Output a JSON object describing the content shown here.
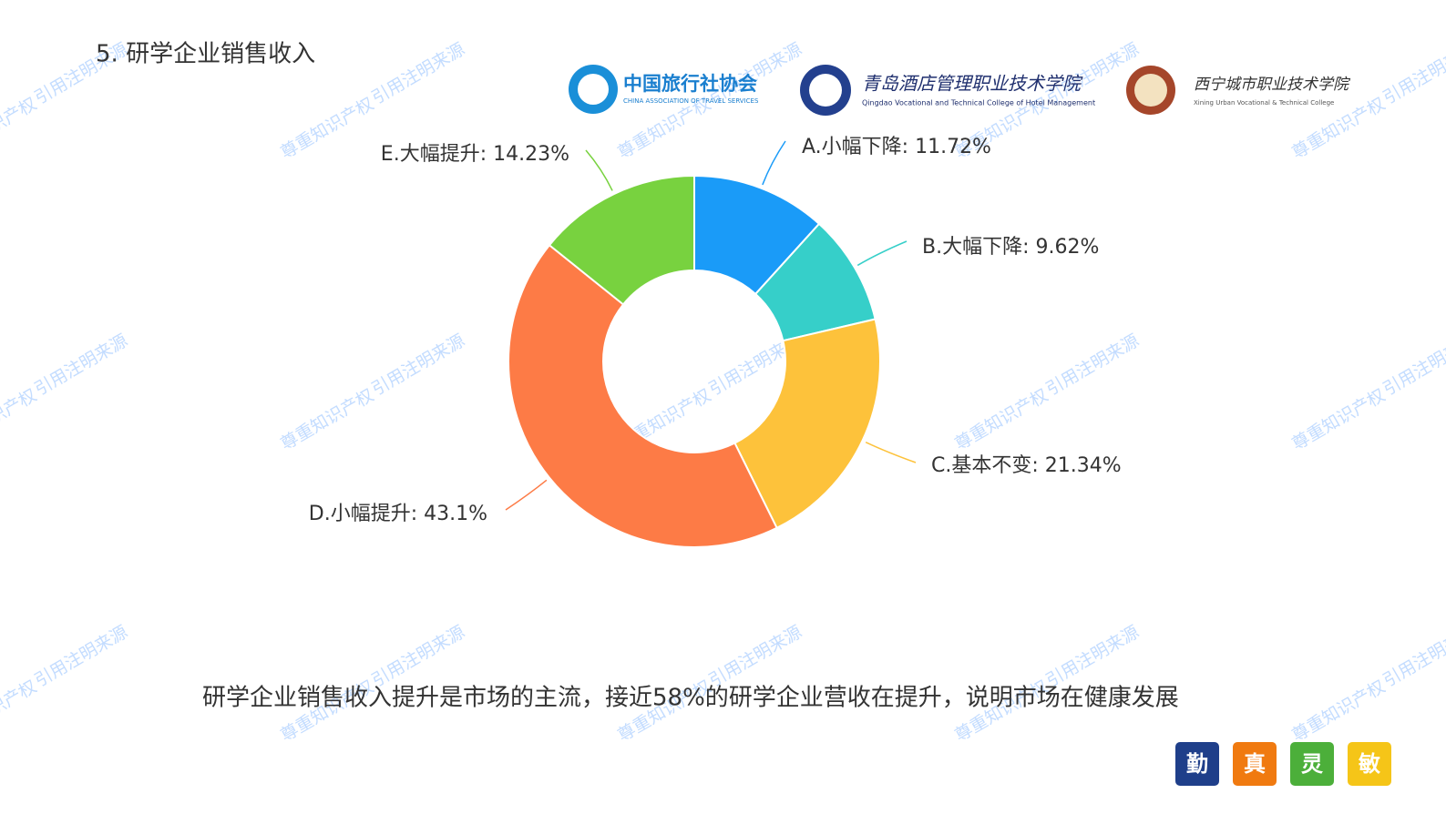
{
  "chart_data": {
    "type": "donut",
    "title": "5. 研学企业销售收入",
    "categories": [
      "A.小幅下降",
      "B.大幅下降",
      "C.基本不变",
      "D.小幅提升",
      "E.大幅提升"
    ],
    "label_separator": ": ",
    "values": [
      11.72,
      9.62,
      21.34,
      43.1,
      14.23
    ],
    "value_labels": [
      "11.72%",
      "9.62%",
      "21.34%",
      "43.1%",
      "14.23%"
    ],
    "colors": [
      "#1a9bf8",
      "#36cfc9",
      "#fdc23b",
      "#fd7b46",
      "#78d23f"
    ]
  },
  "logos": [
    {
      "name": "中国旅行社协会",
      "subtitle": "CHINA ASSOCIATION OF TRAVEL SERVICES"
    },
    {
      "name": "青岛酒店管理职业技术学院",
      "subtitle": "Qingdao Vocational and Technical College of Hotel Management"
    },
    {
      "name": "西宁城市职业技术学院",
      "subtitle": "Xining Urban Vocational & Technical College"
    }
  ],
  "conclusion": "研学企业销售收入提升是市场的主流，接近58%的研学企业营收在提升，说明市场在健康发展",
  "badges": [
    "勤",
    "真",
    "灵",
    "敏"
  ],
  "watermark": [
    "尊重知识产权",
    "引用注明来源"
  ]
}
